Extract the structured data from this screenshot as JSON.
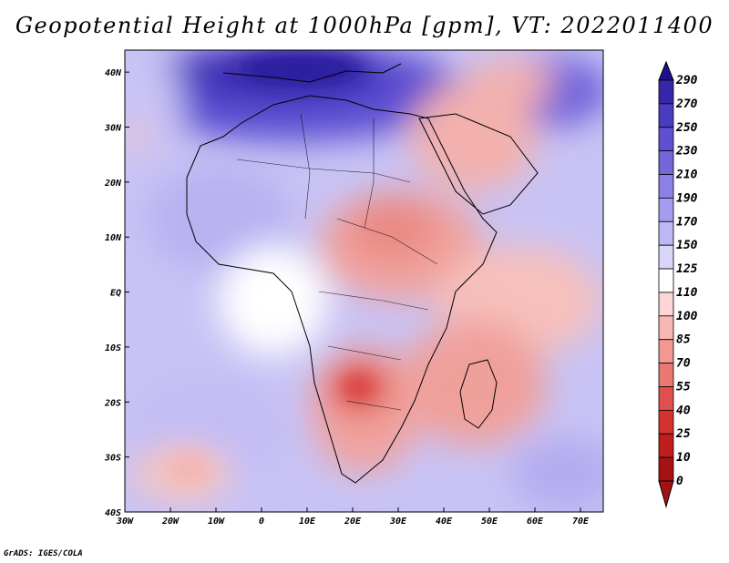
{
  "title": "Geopotential Height at 1000hPa [gpm], VT: 2022011400",
  "map": {
    "lon_labels": [
      "30W",
      "20W",
      "10W",
      "0",
      "10E",
      "20E",
      "30E",
      "40E",
      "50E",
      "60E",
      "70E"
    ],
    "lat_labels": [
      "40N",
      "30N",
      "20N",
      "10N",
      "EQ",
      "10S",
      "20S",
      "30S",
      "40S"
    ],
    "lon_range": [
      -30,
      75
    ],
    "lat_range": [
      -40,
      44
    ]
  },
  "colorbar": {
    "labels": [
      "290",
      "270",
      "250",
      "230",
      "210",
      "190",
      "170",
      "150",
      "125",
      "110",
      "100",
      "85",
      "70",
      "55",
      "40",
      "25",
      "10",
      "0"
    ],
    "colors": [
      "#1e0f8c",
      "#3527a8",
      "#4a3cc0",
      "#5e50d0",
      "#7566dc",
      "#8b80e6",
      "#a49cee",
      "#bdb7f3",
      "#d9d6fa",
      "#ffffff",
      "#fbd6d4",
      "#f7b8b4",
      "#f19893",
      "#ea7772",
      "#e0514d",
      "#d4322f",
      "#c11d1d",
      "#a41212"
    ]
  },
  "credit": "GrADS: IGES/COLA"
}
